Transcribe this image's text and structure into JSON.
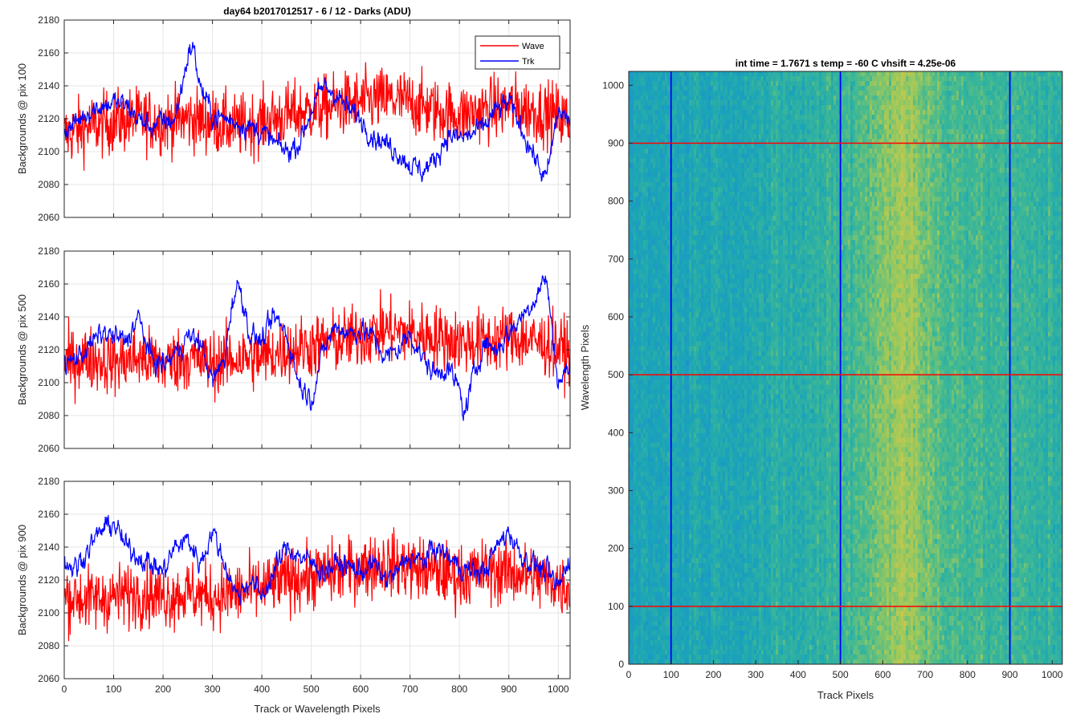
{
  "colors": {
    "wave": "#ff0000",
    "trk": "#0000ff",
    "grid": "#e6e6e6",
    "axis": "#262626"
  },
  "chart_data": [
    {
      "type": "line",
      "title": "day64 b2017012517 - 6 / 12 - Darks (ADU)",
      "ylabel": "Backgrounds @ pix 100",
      "xlabel": "",
      "xlim": [
        0,
        1024
      ],
      "ylim": [
        2060,
        2180
      ],
      "xticks": [
        0,
        100,
        200,
        300,
        400,
        500,
        600,
        700,
        800,
        900,
        1000
      ],
      "yticks": [
        2060,
        2080,
        2100,
        2120,
        2140,
        2160,
        2180
      ],
      "grid": true,
      "legend": "top-right",
      "series": [
        {
          "name": "Wave",
          "color": "#ff0000",
          "x": [
            0,
            50,
            100,
            150,
            200,
            250,
            300,
            350,
            400,
            450,
            500,
            550,
            600,
            650,
            700,
            750,
            800,
            850,
            900,
            950,
            1000,
            1024
          ],
          "values": [
            2110,
            2115,
            2118,
            2120,
            2118,
            2120,
            2118,
            2115,
            2118,
            2122,
            2125,
            2128,
            2130,
            2132,
            2130,
            2125,
            2122,
            2125,
            2128,
            2125,
            2122,
            2118
          ]
        },
        {
          "name": "Trk",
          "color": "#0000ff",
          "x": [
            0,
            25,
            50,
            75,
            100,
            125,
            150,
            175,
            200,
            225,
            250,
            260,
            275,
            300,
            325,
            350,
            375,
            400,
            425,
            450,
            475,
            500,
            525,
            550,
            575,
            600,
            625,
            650,
            675,
            700,
            725,
            750,
            775,
            800,
            825,
            850,
            875,
            900,
            925,
            950,
            975,
            1000,
            1024
          ],
          "values": [
            2112,
            2118,
            2125,
            2128,
            2130,
            2128,
            2120,
            2115,
            2118,
            2120,
            2158,
            2165,
            2140,
            2122,
            2120,
            2118,
            2115,
            2112,
            2105,
            2100,
            2105,
            2125,
            2140,
            2135,
            2125,
            2120,
            2110,
            2105,
            2100,
            2092,
            2088,
            2095,
            2110,
            2108,
            2110,
            2115,
            2125,
            2130,
            2115,
            2098,
            2082,
            2125,
            2118
          ]
        }
      ]
    },
    {
      "type": "line",
      "title": "",
      "ylabel": "Backgrounds @ pix 500",
      "xlabel": "",
      "xlim": [
        0,
        1024
      ],
      "ylim": [
        2060,
        2180
      ],
      "xticks": [
        0,
        100,
        200,
        300,
        400,
        500,
        600,
        700,
        800,
        900,
        1000
      ],
      "yticks": [
        2060,
        2080,
        2100,
        2120,
        2140,
        2160,
        2180
      ],
      "grid": true,
      "series": [
        {
          "name": "Wave",
          "color": "#ff0000",
          "x": [
            0,
            50,
            100,
            150,
            200,
            250,
            300,
            350,
            400,
            450,
            500,
            550,
            600,
            650,
            700,
            750,
            800,
            850,
            900,
            950,
            1000,
            1024
          ],
          "values": [
            2112,
            2115,
            2112,
            2115,
            2112,
            2115,
            2112,
            2115,
            2115,
            2120,
            2122,
            2125,
            2128,
            2132,
            2130,
            2128,
            2125,
            2125,
            2128,
            2125,
            2122,
            2118
          ]
        },
        {
          "name": "Trk",
          "color": "#0000ff",
          "x": [
            0,
            25,
            50,
            75,
            100,
            125,
            150,
            175,
            200,
            225,
            250,
            275,
            300,
            325,
            340,
            355,
            375,
            400,
            425,
            450,
            475,
            500,
            525,
            550,
            575,
            600,
            625,
            650,
            675,
            700,
            725,
            750,
            775,
            800,
            810,
            825,
            850,
            875,
            900,
            925,
            950,
            975,
            1000,
            1024
          ],
          "values": [
            2110,
            2115,
            2122,
            2130,
            2128,
            2125,
            2140,
            2115,
            2110,
            2118,
            2128,
            2125,
            2100,
            2115,
            2150,
            2160,
            2130,
            2125,
            2140,
            2130,
            2100,
            2090,
            2120,
            2135,
            2130,
            2132,
            2128,
            2115,
            2120,
            2130,
            2115,
            2105,
            2110,
            2095,
            2080,
            2100,
            2125,
            2120,
            2130,
            2140,
            2150,
            2165,
            2100,
            2110
          ]
        }
      ]
    },
    {
      "type": "line",
      "title": "",
      "ylabel": "Backgrounds @ pix 900",
      "xlabel": "Track or Wavelength Pixels",
      "xlim": [
        0,
        1024
      ],
      "ylim": [
        2060,
        2180
      ],
      "xticks": [
        0,
        100,
        200,
        300,
        400,
        500,
        600,
        700,
        800,
        900,
        1000
      ],
      "yticks": [
        2060,
        2080,
        2100,
        2120,
        2140,
        2160,
        2180
      ],
      "grid": true,
      "series": [
        {
          "name": "Wave",
          "color": "#ff0000",
          "x": [
            0,
            50,
            100,
            150,
            200,
            250,
            300,
            350,
            400,
            450,
            500,
            550,
            600,
            650,
            700,
            750,
            800,
            850,
            900,
            950,
            1000,
            1024
          ],
          "values": [
            2110,
            2108,
            2110,
            2112,
            2110,
            2112,
            2110,
            2112,
            2115,
            2120,
            2122,
            2125,
            2128,
            2130,
            2128,
            2125,
            2122,
            2125,
            2125,
            2122,
            2118,
            2115
          ]
        },
        {
          "name": "Trk",
          "color": "#0000ff",
          "x": [
            0,
            25,
            50,
            75,
            100,
            125,
            150,
            175,
            200,
            225,
            250,
            275,
            300,
            325,
            350,
            375,
            400,
            425,
            450,
            475,
            500,
            525,
            550,
            575,
            600,
            625,
            650,
            675,
            700,
            725,
            750,
            775,
            800,
            825,
            850,
            875,
            900,
            925,
            950,
            975,
            1000,
            1024
          ],
          "values": [
            2130,
            2128,
            2140,
            2150,
            2155,
            2140,
            2135,
            2130,
            2125,
            2140,
            2145,
            2130,
            2150,
            2130,
            2110,
            2120,
            2110,
            2125,
            2140,
            2135,
            2130,
            2125,
            2130,
            2128,
            2125,
            2130,
            2120,
            2125,
            2135,
            2130,
            2140,
            2135,
            2128,
            2125,
            2125,
            2140,
            2150,
            2135,
            2130,
            2125,
            2115,
            2135
          ]
        }
      ]
    },
    {
      "type": "heatmap",
      "title": "int time = 1.7671 s    temp = -60 C    vhsift = 4.25e-06",
      "xlabel": "Track Pixels",
      "ylabel": "Wavelength Pixels",
      "xlim": [
        0,
        1024
      ],
      "ylim": [
        0,
        1024
      ],
      "xticks": [
        0,
        100,
        200,
        300,
        400,
        500,
        600,
        700,
        800,
        900,
        1000
      ],
      "yticks": [
        0,
        100,
        200,
        300,
        400,
        500,
        600,
        700,
        800,
        900,
        1000
      ],
      "colormap": [
        "#1f8fd0",
        "#1aa4b8",
        "#3db895",
        "#9fc95a",
        "#d6c64a"
      ],
      "column_profile": {
        "x": [
          0,
          100,
          200,
          300,
          400,
          500,
          550,
          600,
          650,
          700,
          800,
          900,
          1024
        ],
        "level": [
          0.25,
          0.28,
          0.3,
          0.32,
          0.36,
          0.45,
          0.55,
          0.68,
          0.8,
          0.62,
          0.5,
          0.45,
          0.4
        ]
      },
      "vertical_markers": [
        100,
        500,
        900
      ],
      "horizontal_markers": [
        100,
        500,
        900
      ],
      "vertical_marker_color": "#0000ff",
      "horizontal_marker_color": "#ff0000"
    }
  ]
}
